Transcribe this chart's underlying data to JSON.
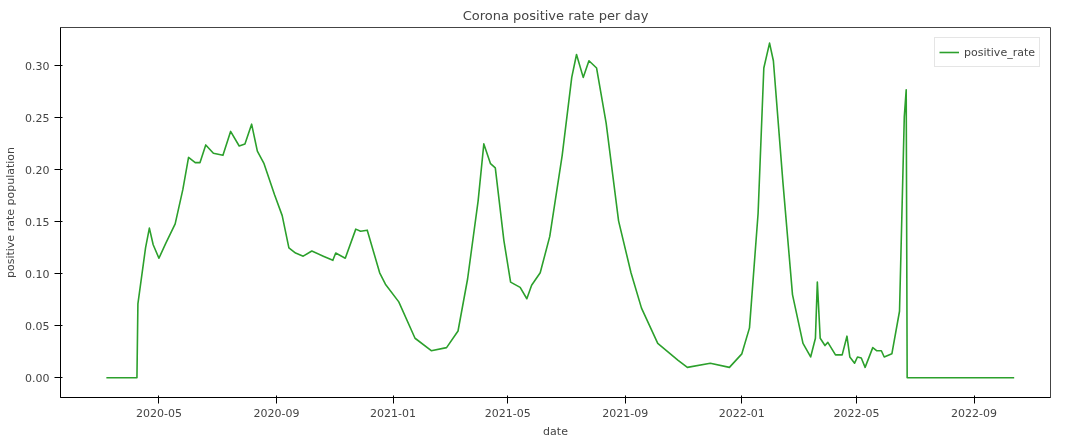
{
  "chart_data": {
    "type": "line",
    "title": "Corona positive rate per day",
    "xlabel": "date",
    "ylabel": "positive rate population",
    "xlim": [
      "2020-01-19",
      "2022-11-20"
    ],
    "ylim": [
      -0.019,
      0.337
    ],
    "xticks": [
      {
        "value": "2020-05-01",
        "label": "2020-05"
      },
      {
        "value": "2020-09-01",
        "label": "2020-09"
      },
      {
        "value": "2021-01-01",
        "label": "2021-01"
      },
      {
        "value": "2021-05-01",
        "label": "2021-05"
      },
      {
        "value": "2021-09-01",
        "label": "2021-09"
      },
      {
        "value": "2022-01-01",
        "label": "2022-01"
      },
      {
        "value": "2022-05-01",
        "label": "2022-05"
      },
      {
        "value": "2022-09-01",
        "label": "2022-09"
      }
    ],
    "yticks": [
      {
        "value": 0,
        "label": "0.00"
      },
      {
        "value": 0.05,
        "label": "0.05"
      },
      {
        "value": 0.1,
        "label": "0.10"
      },
      {
        "value": 0.15,
        "label": "0.15"
      },
      {
        "value": 0.2,
        "label": "0.20"
      },
      {
        "value": 0.25,
        "label": "0.25"
      },
      {
        "value": 0.3,
        "label": "0.30"
      }
    ],
    "grid": false,
    "legend": "top right",
    "x": [
      "2020-03-07",
      "2020-04-08",
      "2020-04-09",
      "2020-04-17",
      "2020-04-21",
      "2020-04-25",
      "2020-05-01",
      "2020-05-08",
      "2020-05-18",
      "2020-05-26",
      "2020-06-01",
      "2020-06-08",
      "2020-06-13",
      "2020-06-19",
      "2020-06-27",
      "2020-07-07",
      "2020-07-15",
      "2020-07-24",
      "2020-07-30",
      "2020-08-06",
      "2020-08-12",
      "2020-08-19",
      "2020-08-30",
      "2020-09-07",
      "2020-09-14",
      "2020-09-21",
      "2020-09-29",
      "2020-10-08",
      "2020-10-20",
      "2020-10-30",
      "2020-11-02",
      "2020-11-12",
      "2020-11-23",
      "2020-11-28",
      "2020-12-05",
      "2020-12-18",
      "2020-12-24",
      "2021-01-07",
      "2021-01-24",
      "2021-02-10",
      "2021-02-26",
      "2021-03-10",
      "2021-03-20",
      "2021-03-31",
      "2021-04-06",
      "2021-04-13",
      "2021-04-18",
      "2021-04-27",
      "2021-05-04",
      "2021-05-14",
      "2021-05-21",
      "2021-05-26",
      "2021-06-04",
      "2021-06-14",
      "2021-06-27",
      "2021-07-07",
      "2021-07-12",
      "2021-07-19",
      "2021-07-25",
      "2021-08-02",
      "2021-08-12",
      "2021-08-25",
      "2021-09-07",
      "2021-09-18",
      "2021-10-05",
      "2021-10-26",
      "2021-11-05",
      "2021-11-29",
      "2021-12-19",
      "2022-01-01",
      "2022-01-09",
      "2022-01-18",
      "2022-01-24",
      "2022-01-30",
      "2022-02-03",
      "2022-02-13",
      "2022-02-23",
      "2022-03-06",
      "2022-03-14",
      "2022-03-19",
      "2022-03-21",
      "2022-03-24",
      "2022-03-29",
      "2022-04-01",
      "2022-04-09",
      "2022-04-16",
      "2022-04-21",
      "2022-04-24",
      "2022-04-29",
      "2022-05-02",
      "2022-05-06",
      "2022-05-10",
      "2022-05-18",
      "2022-05-22",
      "2022-05-27",
      "2022-05-30",
      "2022-06-07",
      "2022-06-15",
      "2022-06-20",
      "2022-06-22",
      "2022-06-23",
      "2022-10-13"
    ],
    "series": [
      {
        "name": "positive_rate",
        "color": "#2ca02c",
        "values": [
          0,
          0,
          0.071,
          0.125,
          0.144,
          0.128,
          0.115,
          0.129,
          0.148,
          0.181,
          0.212,
          0.207,
          0.207,
          0.224,
          0.216,
          0.214,
          0.237,
          0.223,
          0.225,
          0.244,
          0.218,
          0.206,
          0.176,
          0.156,
          0.125,
          0.12,
          0.117,
          0.122,
          0.117,
          0.113,
          0.12,
          0.115,
          0.143,
          0.141,
          0.142,
          0.101,
          0.09,
          0.073,
          0.038,
          0.026,
          0.029,
          0.045,
          0.095,
          0.17,
          0.225,
          0.206,
          0.202,
          0.132,
          0.092,
          0.087,
          0.076,
          0.089,
          0.101,
          0.136,
          0.214,
          0.289,
          0.311,
          0.289,
          0.305,
          0.298,
          0.245,
          0.151,
          0.101,
          0.067,
          0.033,
          0.017,
          0.01,
          0.014,
          0.01,
          0.023,
          0.048,
          0.158,
          0.298,
          0.322,
          0.305,
          0.188,
          0.08,
          0.033,
          0.02,
          0.038,
          0.092,
          0.038,
          0.031,
          0.034,
          0.022,
          0.022,
          0.04,
          0.02,
          0.014,
          0.02,
          0.019,
          0.01,
          0.029,
          0.026,
          0.026,
          0.02,
          0.023,
          0.064,
          0.251,
          0.277,
          0,
          0
        ]
      }
    ]
  }
}
